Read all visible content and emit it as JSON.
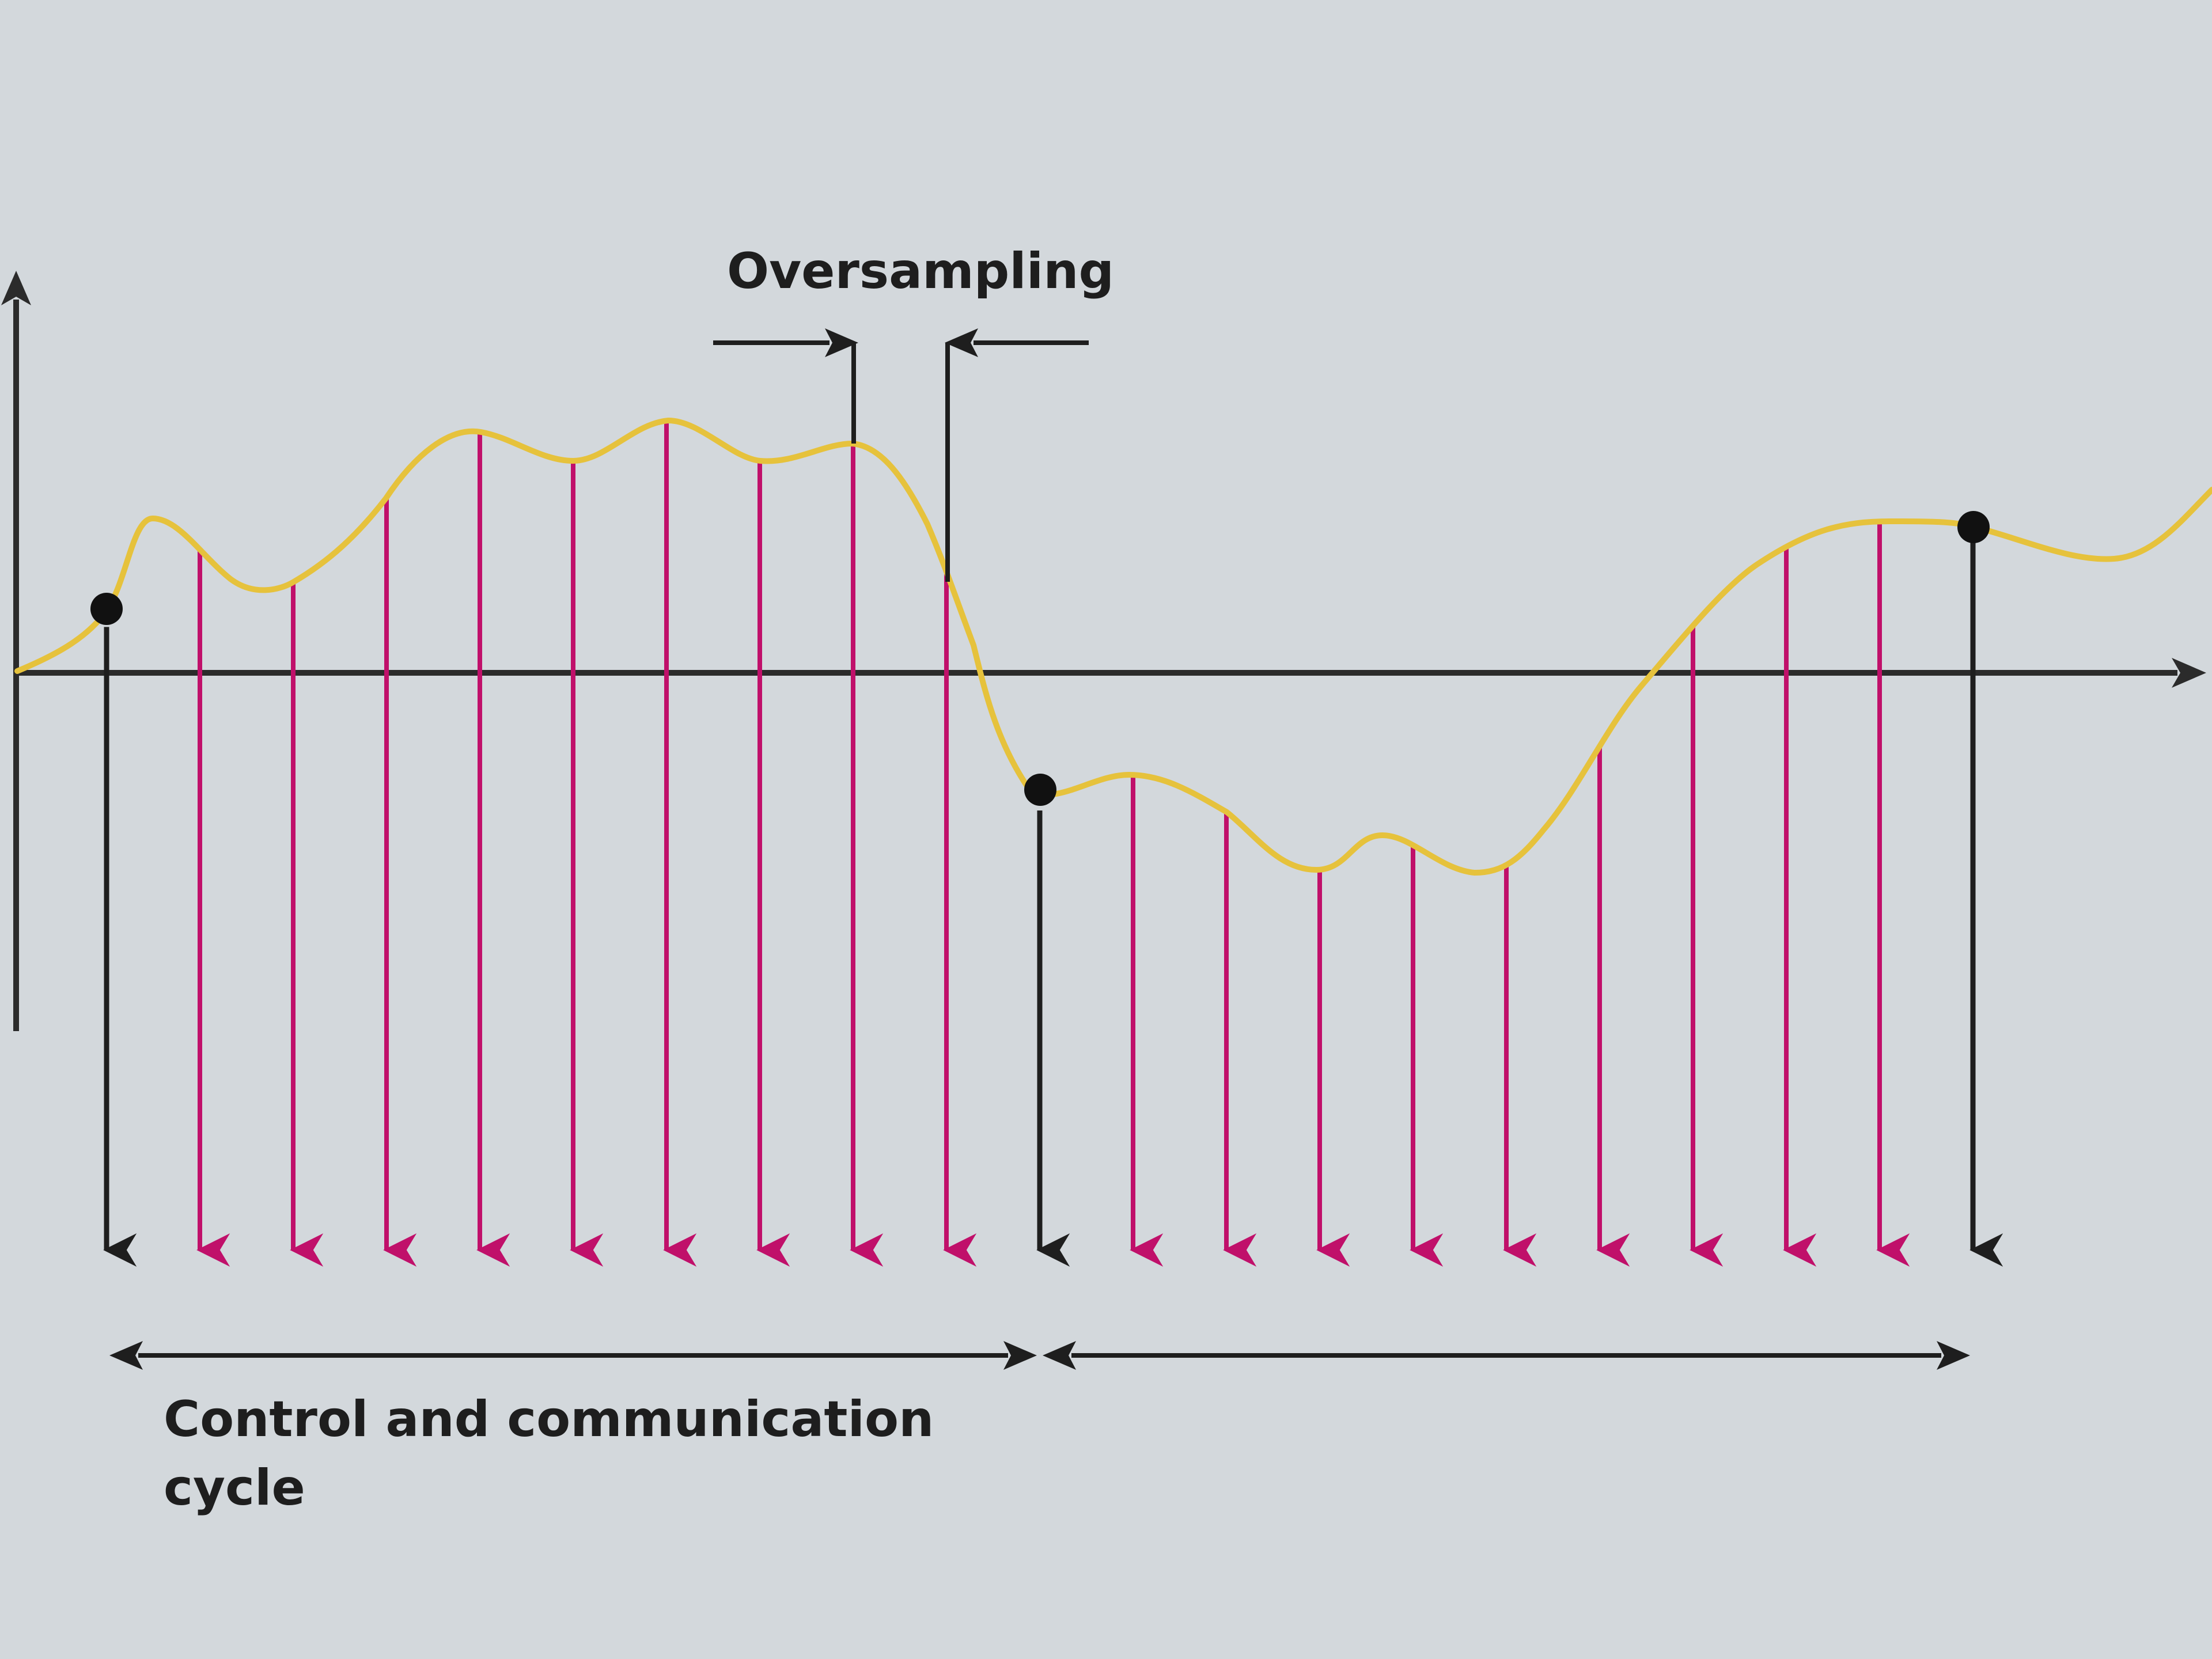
{
  "labels": {
    "oversampling": "Oversampling",
    "cycle_line1": "Control and communication",
    "cycle_line2": "cycle"
  },
  "colors": {
    "background": "#d3d8dc",
    "signal": "#e6c23c",
    "oversample_arrow": "#c0106a",
    "cycle_arrow": "#1e1e1e",
    "axis": "#2b2b2b"
  }
}
